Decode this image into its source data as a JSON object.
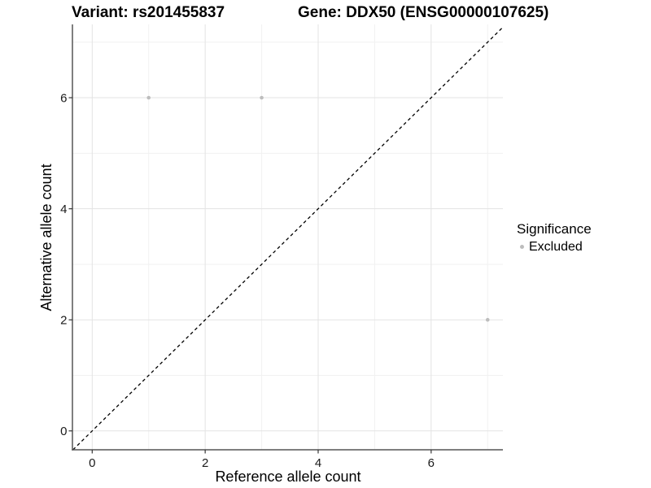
{
  "chart_data": {
    "type": "scatter",
    "title_left": "Variant: rs201455837",
    "title_right": "Gene: DDX50 (ENSG00000107625)",
    "xlabel": "Reference allele count",
    "ylabel": "Alternative allele count",
    "x_ticks": [
      0,
      2,
      4,
      6
    ],
    "y_ticks": [
      0,
      2,
      4,
      6
    ],
    "x_minor_ticks": [
      1,
      3,
      5,
      7
    ],
    "y_minor_ticks": [
      1,
      3,
      5,
      7
    ],
    "xlim": [
      -0.35,
      7.27
    ],
    "ylim": [
      -0.34,
      7.32
    ],
    "grid": true,
    "series": [
      {
        "name": "Excluded",
        "points": [
          {
            "x": 1,
            "y": 6
          },
          {
            "x": 3,
            "y": 6
          },
          {
            "x": 7,
            "y": 2
          }
        ],
        "color": "#bdbdbd"
      }
    ],
    "reference_line": {
      "type": "identity",
      "slope": 1,
      "intercept": 0,
      "style": "dashed",
      "color": "#000000"
    },
    "legend": {
      "title": "Significance",
      "position": "right",
      "items": [
        {
          "label": "Excluded",
          "color": "#bdbdbd"
        }
      ]
    },
    "colors": {
      "background": "#ffffff",
      "grid_major": "#e3e3e3",
      "grid_minor": "#f1f1f1",
      "axis_line": "#555555",
      "tick_mark": "#333333",
      "tick_label": "#1a1a1a",
      "point": "#bdbdbd"
    }
  }
}
